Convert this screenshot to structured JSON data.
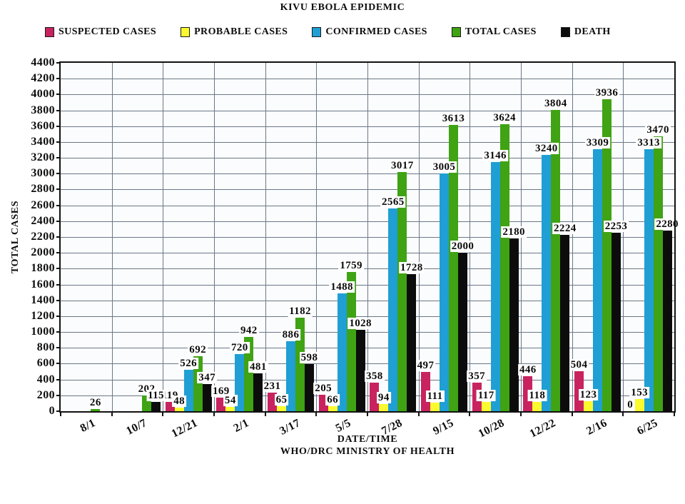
{
  "title": "KIVU EBOLA EPIDEMIC",
  "chart_data": {
    "type": "bar",
    "title": "KIVU EBOLA EPIDEMIC",
    "xlabel": "DATE/TIME",
    "xlabel_sub": "WHO/DRC MINISTRY OF HEALTH",
    "ylabel": "TOTAL CASES",
    "ylim": [
      0,
      4400
    ],
    "ytick_step": 200,
    "grid": true,
    "legend_position": "top",
    "categories": [
      "8/1",
      "10/7",
      "12/21",
      "2/1",
      "3/17",
      "5/5",
      "7/28",
      "9/15",
      "10/28",
      "12/22",
      "2/16",
      "6/25"
    ],
    "series": [
      {
        "name": "SUSPECTED CASES",
        "color": "#c8235f",
        "values": [
          null,
          null,
          119,
          169,
          231,
          205,
          358,
          497,
          357,
          446,
          504,
          0
        ]
      },
      {
        "name": "PROBABLE CASES",
        "color": "#fafa2e",
        "values": [
          null,
          null,
          48,
          54,
          65,
          66,
          94,
          111,
          117,
          118,
          123,
          153
        ]
      },
      {
        "name": "CONFIRMED CASES",
        "color": "#1f9fd4",
        "values": [
          null,
          null,
          526,
          720,
          886,
          1488,
          2565,
          3005,
          3146,
          3240,
          3309,
          3313
        ]
      },
      {
        "name": "TOTAL CASES",
        "color": "#3fa313",
        "values": [
          26,
          202,
          692,
          942,
          1182,
          1759,
          3017,
          3613,
          3624,
          3804,
          3936,
          3470
        ]
      },
      {
        "name": "DEATH",
        "color": "#0c0c0c",
        "values": [
          null,
          115,
          347,
          481,
          598,
          1028,
          1728,
          2000,
          2180,
          2224,
          2253,
          2280
        ]
      }
    ]
  }
}
